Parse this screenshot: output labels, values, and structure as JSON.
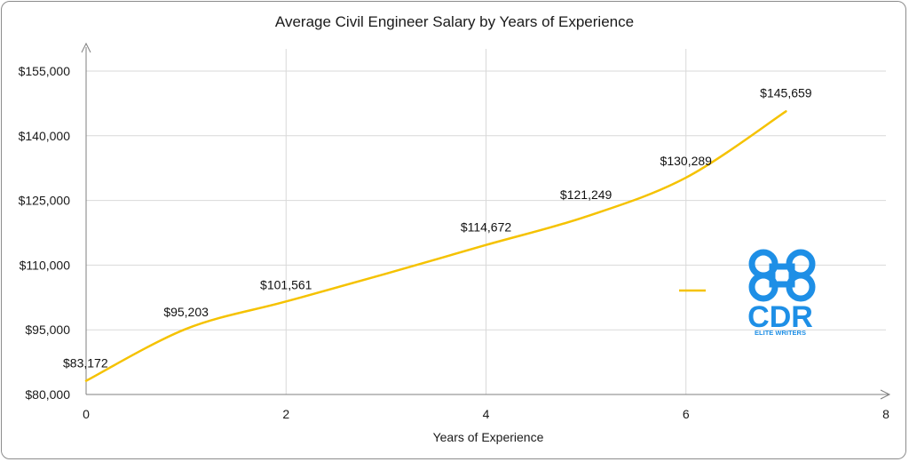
{
  "chart_data": {
    "type": "line",
    "title": "Average Civil Engineer Salary by Years of Experience",
    "xlabel": "Years of Experience",
    "ylabel": "",
    "x": [
      0,
      1,
      2,
      3,
      4,
      5,
      6,
      7
    ],
    "series": [
      {
        "values": [
          83172,
          95203,
          101561,
          108000,
          114672,
          121249,
          130289,
          145659
        ],
        "data_labels": [
          "$83,172",
          "$95,203",
          "$101,561",
          "",
          "$114,672",
          "$121,249",
          "$130,289",
          "$145,659"
        ],
        "color": "#F5C200",
        "smooth": true
      }
    ],
    "xlim": [
      0,
      8
    ],
    "ylim": [
      80000,
      155000
    ],
    "x_ticks": [
      "0",
      "2",
      "4",
      "6",
      "8"
    ],
    "y_ticks": [
      "$80,000",
      "$95,000",
      "$110,000",
      "$125,000",
      "$140,000",
      "$155,000"
    ],
    "grid": true,
    "legend": "none"
  },
  "logo": {
    "brand": "CDR",
    "tagline": "ELITE WRITERS",
    "color": "#1E8FE6"
  },
  "legend_swatch_color": "#F5C200"
}
